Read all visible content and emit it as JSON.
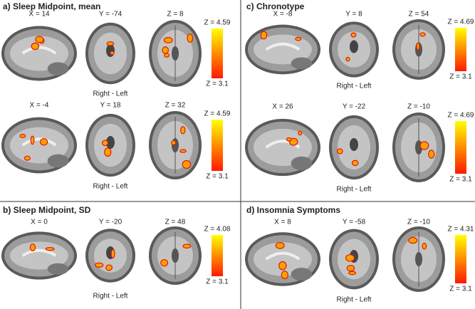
{
  "panels": [
    {
      "title": "a) Sleep Midpoint, mean",
      "rows": [
        {
          "views": [
            "X = 14",
            "Y = -74",
            "Z = 8"
          ],
          "z_max": "Z = 4.59",
          "z_min": "Z = 3.1",
          "orientation": "Right - Left"
        },
        {
          "views": [
            "X = -4",
            "Y = 18",
            "Z = 32"
          ],
          "z_max": "Z = 4.59",
          "z_min": "Z = 3.1",
          "orientation": "Right - Left"
        }
      ]
    },
    {
      "title": "b) Sleep Midpoint, SD",
      "rows": [
        {
          "views": [
            "X = 0",
            "Y = -20",
            "Z = 48"
          ],
          "z_max": "Z = 4.08",
          "z_min": "Z = 3.1",
          "orientation": "Right - Left"
        }
      ]
    },
    {
      "title": "c) Chronotype",
      "rows": [
        {
          "views": [
            "X = -8",
            "Y = 8",
            "Z = 54"
          ],
          "z_max": "Z = 4.69",
          "z_min": "Z = 3.1",
          "orientation": "Right - Left"
        },
        {
          "views": [
            "X = 26",
            "Y = -22",
            "Z = -10"
          ],
          "z_max": "Z = 4.69",
          "z_min": "Z = 3.1",
          "orientation": "Right - Left"
        }
      ]
    },
    {
      "title": "d) Insomnia Symptoms",
      "rows": [
        {
          "views": [
            "X = 8",
            "Y = -58",
            "Z = -10"
          ],
          "z_max": "Z = 4.31",
          "z_min": "Z = 3.1",
          "orientation": "Right - Left"
        }
      ]
    }
  ]
}
